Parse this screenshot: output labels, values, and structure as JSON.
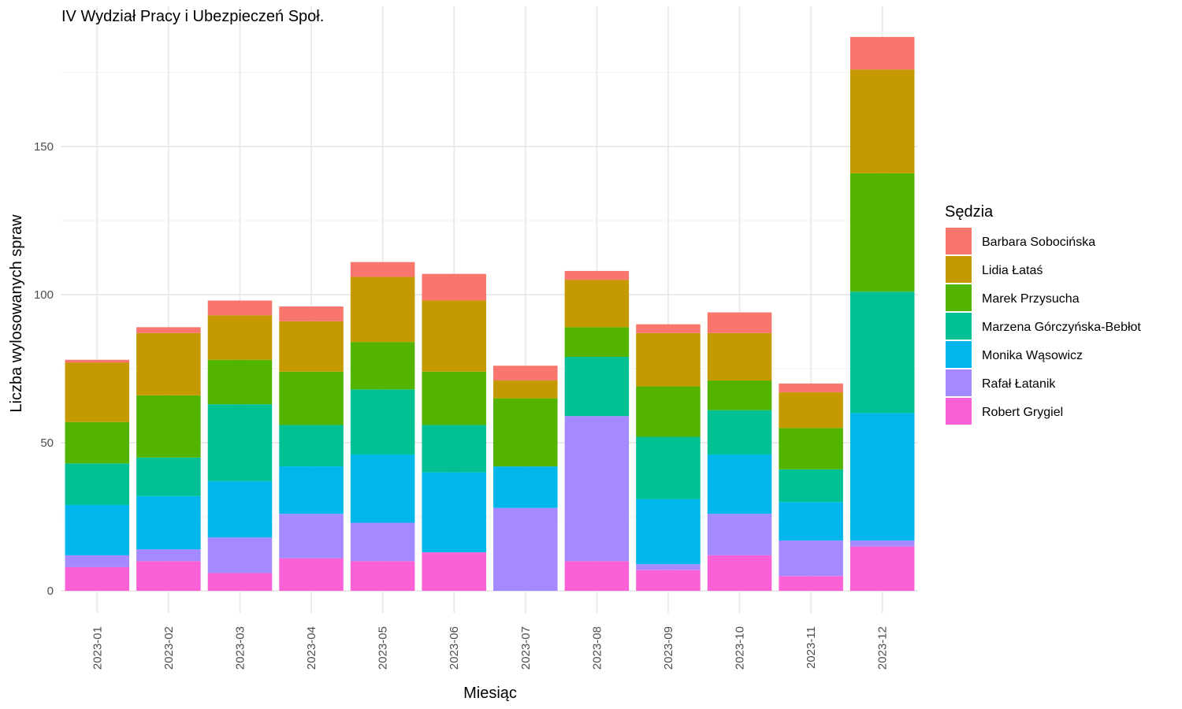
{
  "chart_data": {
    "type": "bar",
    "stacked": true,
    "title": "IV Wydział Pracy i Ubezpieczeń Społ.",
    "xlabel": "Miesiąc",
    "ylabel": "Liczba wylosowanych spraw",
    "ylim": [
      0,
      190
    ],
    "yticks": [
      0,
      50,
      100,
      150
    ],
    "grid": true,
    "legend_title": "Sędzia",
    "legend_position": "right",
    "categories": [
      "2023-01",
      "2023-02",
      "2023-03",
      "2023-04",
      "2023-05",
      "2023-06",
      "2023-07",
      "2023-08",
      "2023-09",
      "2023-10",
      "2023-11",
      "2023-12"
    ],
    "series": [
      {
        "name": "Barbara Sobocińska",
        "color": "#F8766D",
        "values": [
          1,
          2,
          5,
          5,
          5,
          9,
          5,
          3,
          3,
          7,
          3,
          11
        ]
      },
      {
        "name": "Lidia Łataś",
        "color": "#C49A00",
        "values": [
          20,
          21,
          15,
          17,
          22,
          24,
          6,
          16,
          18,
          16,
          12,
          35
        ]
      },
      {
        "name": "Marek Przysucha",
        "color": "#53B400",
        "values": [
          14,
          21,
          15,
          18,
          16,
          18,
          23,
          10,
          17,
          10,
          14,
          40
        ]
      },
      {
        "name": "Marzena Górczyńska-Bebłot",
        "color": "#00C094",
        "values": [
          14,
          13,
          26,
          14,
          22,
          16,
          0,
          20,
          21,
          15,
          11,
          41
        ]
      },
      {
        "name": "Monika Wąsowicz",
        "color": "#00B6EB",
        "values": [
          17,
          18,
          19,
          16,
          23,
          27,
          14,
          0,
          22,
          20,
          13,
          43
        ]
      },
      {
        "name": "Rafał Łatanik",
        "color": "#A58AFF",
        "values": [
          4,
          4,
          12,
          15,
          13,
          0,
          28,
          49,
          2,
          14,
          12,
          2
        ]
      },
      {
        "name": "Robert Grygiel",
        "color": "#FB61D7",
        "values": [
          8,
          10,
          6,
          11,
          10,
          13,
          0,
          10,
          7,
          12,
          5,
          15
        ]
      }
    ]
  }
}
